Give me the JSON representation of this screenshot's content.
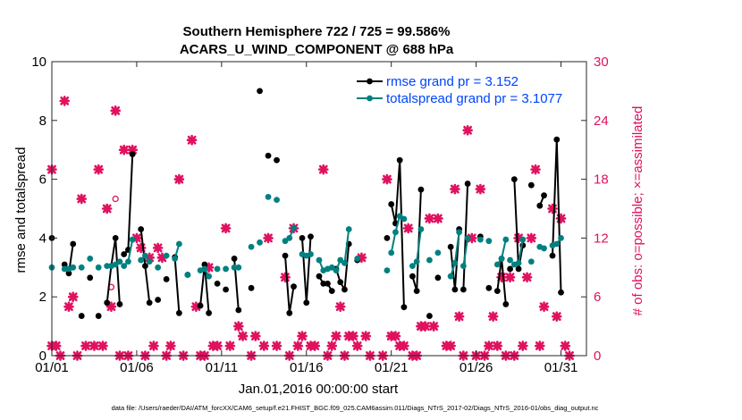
{
  "chart_data": {
    "type": "line",
    "title": "Southern Hemisphere 722 / 725 = 99.586%",
    "subtitle": "ACARS_U_WIND_COMPONENT @ 688 hPa",
    "xlabel": "Jan.01,2016 00:00:00 start",
    "ylabel": "rmse and totalspread",
    "y2label": "# of obs: o=possible; ×=assimilated",
    "footnote": "data file: /Users/raeder/DAI/ATM_forcXX/CAM6_setup/f.e21.FHIST_BGC.f09_025.CAM6assim.011/Diags_NTrS_2017-02/Diags_NTrS_2016-01/obs_diag_output.nc",
    "xlim": [
      0,
      31.5
    ],
    "ylim": [
      0,
      10
    ],
    "y2lim": [
      0,
      30
    ],
    "xticks": [
      0,
      5,
      10,
      15,
      20,
      25,
      30
    ],
    "xticklabels": [
      "01/01",
      "01/06",
      "01/11",
      "01/16",
      "01/21",
      "01/26",
      "01/31"
    ],
    "yticks": [
      0,
      2,
      4,
      6,
      8,
      10
    ],
    "y2ticks": [
      0,
      6,
      12,
      18,
      24,
      30
    ],
    "grid": false,
    "legend_position": "top-right",
    "colors": {
      "rmse": "#000000",
      "totalspread": "#008080",
      "obs": "#e0115f",
      "legend_text": "#0044ff"
    },
    "series": [
      {
        "name": "rmse grand pr = 3.152",
        "color": "#000000",
        "segments": [
          [
            [
              0.0,
              4.0
            ]
          ],
          [
            [
              0.75,
              3.1
            ],
            [
              1.0,
              2.8
            ],
            [
              1.25,
              3.8
            ]
          ],
          [
            [
              1.75,
              1.35
            ]
          ],
          [
            [
              2.25,
              2.65
            ]
          ],
          [
            [
              2.75,
              1.35
            ]
          ],
          [
            [
              3.25,
              1.8
            ],
            [
              3.5,
              3.05
            ],
            [
              3.75,
              4.0
            ],
            [
              4.0,
              1.75
            ]
          ],
          [
            [
              4.25,
              3.45
            ],
            [
              4.5,
              3.6
            ],
            [
              4.75,
              6.85
            ]
          ],
          [
            [
              5.25,
              4.3
            ],
            [
              5.5,
              3.05
            ],
            [
              5.75,
              1.8
            ]
          ],
          [
            [
              6.25,
              1.9
            ]
          ],
          [
            [
              6.75,
              2.6
            ]
          ],
          [
            [
              7.25,
              3.35
            ],
            [
              7.5,
              1.45
            ]
          ],
          [
            [
              8.0,
              2.75
            ]
          ],
          [
            [
              8.75,
              1.7
            ],
            [
              9.0,
              3.1
            ],
            [
              9.25,
              1.45
            ]
          ],
          [
            [
              9.75,
              2.45
            ]
          ],
          [
            [
              10.25,
              2.25
            ]
          ],
          [
            [
              10.75,
              3.3
            ],
            [
              11.0,
              1.55
            ]
          ],
          [
            [
              11.75,
              2.3
            ]
          ],
          [
            [
              12.25,
              9.0
            ]
          ],
          [
            [
              12.75,
              6.8
            ]
          ],
          [
            [
              13.25,
              6.65
            ]
          ],
          [
            [
              13.75,
              3.4
            ],
            [
              14.0,
              1.45
            ],
            [
              14.25,
              2.35
            ]
          ],
          [
            [
              14.75,
              4.0
            ],
            [
              15.0,
              1.8
            ],
            [
              15.25,
              4.05
            ]
          ],
          [
            [
              15.75,
              2.7
            ],
            [
              16.0,
              2.45
            ],
            [
              16.25,
              2.45
            ],
            [
              16.5,
              2.2
            ]
          ],
          [
            [
              16.75,
              2.95
            ],
            [
              17.0,
              2.5
            ],
            [
              17.25,
              2.25
            ],
            [
              17.5,
              3.8
            ]
          ],
          [
            [
              18.0,
              3.25
            ]
          ],
          [
            [
              19.75,
              4.0
            ]
          ],
          [
            [
              20.0,
              5.15
            ],
            [
              20.25,
              4.5
            ],
            [
              20.5,
              6.65
            ],
            [
              20.75,
              1.65
            ]
          ],
          [
            [
              21.25,
              2.7
            ],
            [
              21.5,
              2.2
            ],
            [
              21.75,
              5.65
            ]
          ],
          [
            [
              22.25,
              1.35
            ]
          ],
          [
            [
              22.75,
              2.65
            ]
          ],
          [
            [
              23.5,
              3.7
            ],
            [
              23.75,
              2.25
            ],
            [
              24.0,
              4.3
            ]
          ],
          [
            [
              24.25,
              2.25
            ],
            [
              24.5,
              5.85
            ]
          ],
          [
            [
              25.25,
              4.05
            ]
          ],
          [
            [
              25.75,
              2.3
            ]
          ],
          [
            [
              26.25,
              2.2
            ],
            [
              26.5,
              3.3
            ],
            [
              26.75,
              1.75
            ]
          ],
          [
            [
              27.0,
              2.95
            ]
          ],
          [
            [
              27.25,
              6.0
            ],
            [
              27.5,
              2.95
            ],
            [
              27.75,
              3.75
            ]
          ],
          [
            [
              28.25,
              5.8
            ]
          ],
          [
            [
              28.75,
              5.1
            ],
            [
              29.0,
              5.45
            ]
          ],
          [
            [
              29.5,
              3.4
            ],
            [
              29.75,
              7.35
            ],
            [
              30.0,
              2.15
            ]
          ]
        ]
      },
      {
        "name": "totalspread grand pr = 3.1077",
        "color": "#008080",
        "segments": [
          [
            [
              0.0,
              3.0
            ]
          ],
          [
            [
              0.75,
              2.95
            ],
            [
              1.0,
              2.95
            ],
            [
              1.25,
              3.0
            ]
          ],
          [
            [
              1.75,
              3.0
            ]
          ],
          [
            [
              2.25,
              3.3
            ]
          ],
          [
            [
              2.75,
              3.0
            ]
          ],
          [
            [
              3.25,
              3.05
            ],
            [
              3.5,
              3.05
            ],
            [
              3.75,
              3.1
            ],
            [
              4.0,
              3.2
            ]
          ],
          [
            [
              4.25,
              3.05
            ],
            [
              4.5,
              3.2
            ],
            [
              4.75,
              3.95
            ]
          ],
          [
            [
              5.25,
              3.25
            ],
            [
              5.5,
              3.4
            ],
            [
              5.75,
              3.2
            ]
          ],
          [
            [
              6.25,
              3.0
            ]
          ],
          [
            [
              6.75,
              3.4
            ]
          ],
          [
            [
              7.25,
              3.3
            ],
            [
              7.5,
              3.8
            ]
          ],
          [
            [
              8.0,
              2.75
            ]
          ],
          [
            [
              8.75,
              2.9
            ],
            [
              9.0,
              2.95
            ],
            [
              9.25,
              2.7
            ]
          ],
          [
            [
              9.75,
              2.95
            ]
          ],
          [
            [
              10.25,
              2.95
            ]
          ],
          [
            [
              10.75,
              3.0
            ],
            [
              11.0,
              3.0
            ]
          ],
          [
            [
              11.75,
              3.7
            ]
          ],
          [
            [
              12.25,
              3.85
            ]
          ],
          [
            [
              12.75,
              5.4
            ]
          ],
          [
            [
              13.25,
              5.3
            ]
          ],
          [
            [
              13.75,
              3.9
            ],
            [
              14.0,
              4.0
            ],
            [
              14.25,
              4.35
            ]
          ],
          [
            [
              14.75,
              3.45
            ],
            [
              15.0,
              3.4
            ],
            [
              15.25,
              3.45
            ]
          ],
          [
            [
              15.75,
              3.25
            ],
            [
              16.0,
              2.9
            ],
            [
              16.25,
              2.95
            ],
            [
              16.5,
              3.0
            ]
          ],
          [
            [
              16.75,
              2.9
            ],
            [
              17.0,
              3.25
            ],
            [
              17.25,
              3.15
            ],
            [
              17.5,
              4.3
            ]
          ],
          [
            [
              18.0,
              3.3
            ]
          ],
          [
            [
              19.75,
              2.9
            ]
          ],
          [
            [
              20.0,
              3.5
            ],
            [
              20.25,
              4.2
            ],
            [
              20.5,
              4.75
            ],
            [
              20.75,
              4.65
            ]
          ],
          [
            [
              21.25,
              3.05
            ],
            [
              21.5,
              3.2
            ],
            [
              21.75,
              4.3
            ]
          ],
          [
            [
              22.25,
              3.25
            ]
          ],
          [
            [
              22.75,
              3.5
            ]
          ],
          [
            [
              23.5,
              2.7
            ],
            [
              23.75,
              3.15
            ],
            [
              24.0,
              4.2
            ]
          ],
          [
            [
              24.25,
              3.05
            ],
            [
              24.5,
              4.0
            ]
          ],
          [
            [
              25.25,
              3.95
            ]
          ],
          [
            [
              25.75,
              3.9
            ]
          ],
          [
            [
              26.25,
              3.1
            ],
            [
              26.5,
              3.3
            ],
            [
              26.75,
              3.95
            ]
          ],
          [
            [
              27.0,
              3.25
            ]
          ],
          [
            [
              27.25,
              3.1
            ],
            [
              27.5,
              3.15
            ],
            [
              27.75,
              3.95
            ]
          ],
          [
            [
              28.25,
              3.2
            ]
          ],
          [
            [
              28.75,
              3.7
            ],
            [
              29.0,
              3.65
            ]
          ],
          [
            [
              29.5,
              3.75
            ],
            [
              29.75,
              3.8
            ],
            [
              30.0,
              4.0
            ]
          ]
        ]
      }
    ],
    "obs_assimilated": [
      [
        0.0,
        19
      ],
      [
        0.0,
        1
      ],
      [
        0.25,
        1
      ],
      [
        0.5,
        0
      ],
      [
        0.75,
        26
      ],
      [
        1.0,
        5
      ],
      [
        1.25,
        6
      ],
      [
        1.5,
        0
      ],
      [
        1.75,
        16
      ],
      [
        2.0,
        1
      ],
      [
        2.5,
        1
      ],
      [
        2.75,
        19
      ],
      [
        3.0,
        1
      ],
      [
        3.25,
        15
      ],
      [
        3.5,
        5
      ],
      [
        3.75,
        25
      ],
      [
        4.0,
        0
      ],
      [
        4.25,
        21
      ],
      [
        4.5,
        0
      ],
      [
        4.75,
        21
      ],
      [
        5.0,
        12
      ],
      [
        5.25,
        11
      ],
      [
        5.5,
        0
      ],
      [
        5.75,
        10
      ],
      [
        6.0,
        1
      ],
      [
        6.25,
        11
      ],
      [
        6.5,
        10
      ],
      [
        6.75,
        0
      ],
      [
        7.0,
        1
      ],
      [
        7.5,
        18
      ],
      [
        7.75,
        0
      ],
      [
        8.25,
        22
      ],
      [
        8.5,
        5
      ],
      [
        8.75,
        0
      ],
      [
        9.0,
        0
      ],
      [
        9.25,
        9
      ],
      [
        9.5,
        1
      ],
      [
        9.75,
        1
      ],
      [
        10.25,
        13
      ],
      [
        10.5,
        1
      ],
      [
        11.0,
        3
      ],
      [
        11.25,
        2
      ],
      [
        11.75,
        0
      ],
      [
        12.0,
        2
      ],
      [
        12.5,
        1
      ],
      [
        12.75,
        12
      ],
      [
        13.25,
        1
      ],
      [
        13.75,
        8
      ],
      [
        14.0,
        0
      ],
      [
        14.25,
        13
      ],
      [
        14.5,
        1
      ],
      [
        14.75,
        2
      ],
      [
        15.25,
        1
      ],
      [
        15.5,
        1
      ],
      [
        16.0,
        19
      ],
      [
        16.25,
        0
      ],
      [
        16.5,
        1
      ],
      [
        16.75,
        2
      ],
      [
        17.0,
        5
      ],
      [
        17.25,
        0
      ],
      [
        17.5,
        2
      ],
      [
        17.75,
        2
      ],
      [
        18.0,
        1
      ],
      [
        18.25,
        10
      ],
      [
        18.5,
        2
      ],
      [
        18.75,
        0
      ],
      [
        19.5,
        0
      ],
      [
        19.75,
        18
      ],
      [
        20.0,
        2
      ],
      [
        20.25,
        2
      ],
      [
        20.5,
        1
      ],
      [
        20.75,
        1
      ],
      [
        21.0,
        13
      ],
      [
        21.25,
        0
      ],
      [
        21.5,
        0
      ],
      [
        21.75,
        3
      ],
      [
        22.0,
        3
      ],
      [
        22.25,
        14
      ],
      [
        22.5,
        3
      ],
      [
        22.75,
        14
      ],
      [
        23.25,
        1
      ],
      [
        23.5,
        1
      ],
      [
        23.75,
        17
      ],
      [
        24.0,
        4
      ],
      [
        24.25,
        0
      ],
      [
        24.5,
        23
      ],
      [
        24.75,
        12
      ],
      [
        25.0,
        0
      ],
      [
        25.25,
        17
      ],
      [
        25.5,
        0
      ],
      [
        25.75,
        1
      ],
      [
        26.0,
        4
      ],
      [
        26.25,
        1
      ],
      [
        26.5,
        8
      ],
      [
        26.75,
        0
      ],
      [
        27.0,
        8
      ],
      [
        27.25,
        0
      ],
      [
        27.5,
        12
      ],
      [
        27.75,
        1
      ],
      [
        28.0,
        8
      ],
      [
        28.25,
        12
      ],
      [
        28.5,
        19
      ],
      [
        28.75,
        1
      ],
      [
        29.0,
        5
      ],
      [
        29.5,
        15
      ],
      [
        29.75,
        4
      ],
      [
        30.0,
        14
      ],
      [
        30.25,
        1
      ],
      [
        30.5,
        0
      ]
    ],
    "obs_possible_only": [
      [
        3.75,
        16
      ],
      [
        3.5,
        7
      ]
    ]
  }
}
